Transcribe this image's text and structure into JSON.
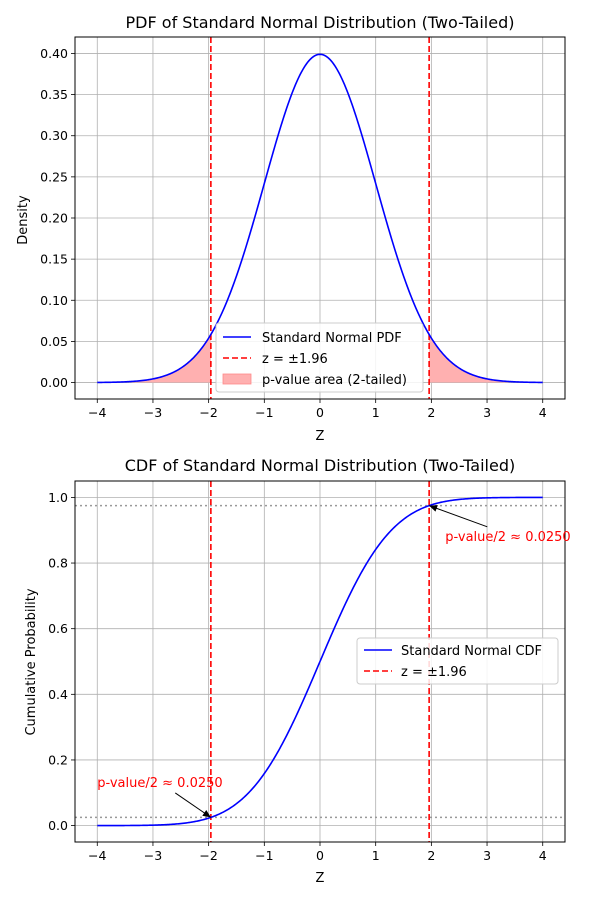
{
  "chart_data": [
    {
      "type": "line",
      "title": "PDF of Standard Normal Distribution (Two-Tailed)",
      "xlabel": "Z",
      "ylabel": "Density",
      "xlim": [
        -4.4,
        4.4
      ],
      "ylim": [
        -0.02,
        0.42
      ],
      "xticks": [
        "−4",
        "−3",
        "−2",
        "−1",
        "0",
        "1",
        "2",
        "3",
        "4"
      ],
      "yticks": [
        "0.00",
        "0.05",
        "0.10",
        "0.15",
        "0.20",
        "0.25",
        "0.30",
        "0.35",
        "0.40"
      ],
      "xtick_values": [
        -4,
        -3,
        -2,
        -1,
        0,
        1,
        2,
        3,
        4
      ],
      "ytick_values": [
        0,
        0.05,
        0.1,
        0.15,
        0.2,
        0.25,
        0.3,
        0.35,
        0.4
      ],
      "grid": true,
      "legend_position": "lower-center",
      "series": [
        {
          "name": "Standard Normal PDF",
          "color": "#0000ff",
          "style": "solid",
          "x": [
            -4,
            -3.5,
            -3,
            -2.5,
            -2,
            -1.5,
            -1,
            -0.5,
            0,
            0.5,
            1,
            1.5,
            2,
            2.5,
            3,
            3.5,
            4
          ],
          "y": [
            0.0001,
            0.0009,
            0.0044,
            0.0175,
            0.054,
            0.1295,
            0.242,
            0.3521,
            0.3989,
            0.3521,
            0.242,
            0.1295,
            0.054,
            0.0175,
            0.0044,
            0.0009,
            0.0001
          ]
        },
        {
          "name": "z = ±1.96",
          "color": "#ff0000",
          "style": "dashed",
          "x": [
            -1.96,
            1.96
          ]
        },
        {
          "name": "p-value area (2-tailed)",
          "color": "#ffb0b0",
          "style": "fill",
          "ranges": [
            [
              -4,
              -1.96
            ],
            [
              1.96,
              4
            ]
          ]
        }
      ]
    },
    {
      "type": "line",
      "title": "CDF of Standard Normal Distribution (Two-Tailed)",
      "xlabel": "Z",
      "ylabel": "Cumulative Probability",
      "xlim": [
        -4.4,
        4.4
      ],
      "ylim": [
        -0.05,
        1.05
      ],
      "xticks": [
        "−4",
        "−3",
        "−2",
        "−1",
        "0",
        "1",
        "2",
        "3",
        "4"
      ],
      "yticks": [
        "0.0",
        "0.2",
        "0.4",
        "0.6",
        "0.8",
        "1.0"
      ],
      "xtick_values": [
        -4,
        -3,
        -2,
        -1,
        0,
        1,
        2,
        3,
        4
      ],
      "ytick_values": [
        0,
        0.2,
        0.4,
        0.6,
        0.8,
        1.0
      ],
      "grid": true,
      "legend_position": "center-right",
      "hlines": [
        0.025,
        0.975
      ],
      "series": [
        {
          "name": "Standard Normal CDF",
          "color": "#0000ff",
          "style": "solid",
          "x": [
            -4,
            -3.5,
            -3,
            -2.5,
            -2,
            -1.5,
            -1,
            -0.5,
            0,
            0.5,
            1,
            1.5,
            2,
            2.5,
            3,
            3.5,
            4
          ],
          "y": [
            3e-05,
            0.0002,
            0.0013,
            0.0062,
            0.0228,
            0.0668,
            0.1587,
            0.3085,
            0.5,
            0.6915,
            0.8413,
            0.9332,
            0.9772,
            0.9938,
            0.9987,
            0.9998,
            0.99997
          ]
        },
        {
          "name": "z = ±1.96",
          "color": "#ff0000",
          "style": "dashed",
          "x": [
            -1.96,
            1.96
          ]
        }
      ],
      "annotations": [
        {
          "text": "p-value/2 ≈ 0.0250",
          "x": 1.96,
          "y": 0.975,
          "text_x": 2.25,
          "text_y": 0.88
        },
        {
          "text": "p-value/2 ≈ 0.0250",
          "x": -1.96,
          "y": 0.025,
          "text_x": -4.0,
          "text_y": 0.13
        }
      ]
    }
  ]
}
